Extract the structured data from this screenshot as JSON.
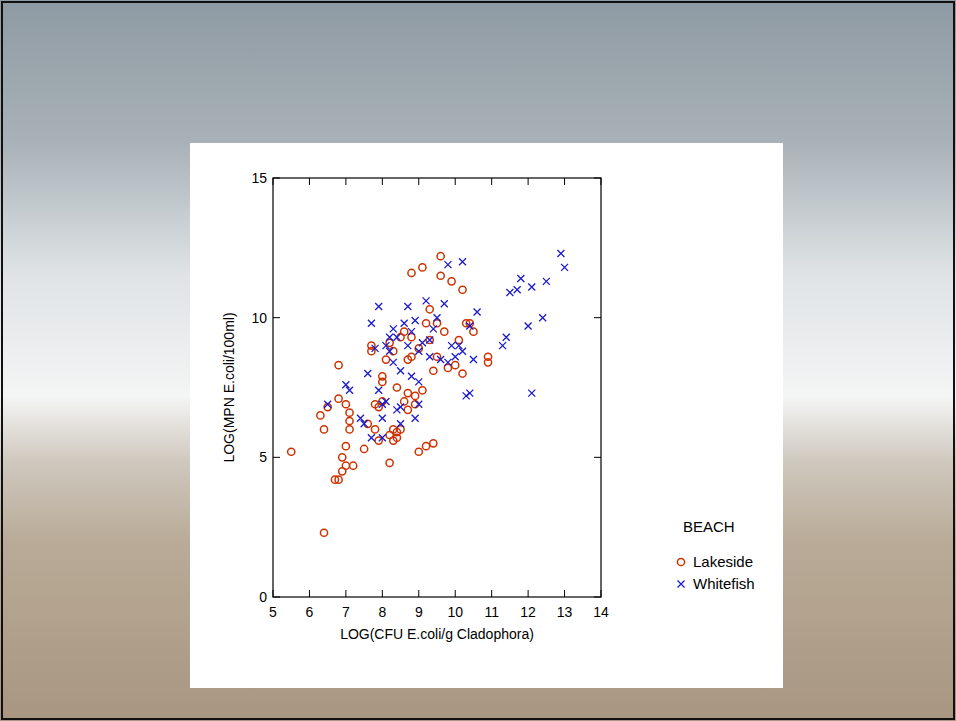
{
  "chart_data": {
    "type": "scatter",
    "x_label": "LOG(CFU E.coli/g Cladophora)",
    "y_label": "LOG(MPN E.coli/100ml)",
    "legend_title": "BEACH",
    "legend": "right",
    "xlim": [
      5,
      14
    ],
    "ylim": [
      0,
      15
    ],
    "xticks": [
      5,
      6,
      7,
      8,
      9,
      10,
      11,
      12,
      13,
      14
    ],
    "yticks": [
      0,
      5,
      10,
      15
    ],
    "series": [
      {
        "name": "Lakeside",
        "color": "#cc3300",
        "marker": "circle",
        "x": [
          5.5,
          6.4,
          6.3,
          6.4,
          6.5,
          6.7,
          6.8,
          6.8,
          6.8,
          6.9,
          6.9,
          7.0,
          7.0,
          7.0,
          7.1,
          7.1,
          7.2,
          7.1,
          7.5,
          7.6,
          7.7,
          7.7,
          7.8,
          7.8,
          7.9,
          8.0,
          8.0,
          8.1,
          8.2,
          8.2,
          8.3,
          8.3,
          8.4,
          8.4,
          8.5,
          8.4,
          8.3,
          8.5,
          8.6,
          8.7,
          8.7,
          8.7,
          8.8,
          8.8,
          8.8,
          8.9,
          8.9,
          9.0,
          9.1,
          9.1,
          9.2,
          9.2,
          9.3,
          9.3,
          9.4,
          9.4,
          9.5,
          9.5,
          9.6,
          9.6,
          9.7,
          9.8,
          9.9,
          10.0,
          10.1,
          10.2,
          10.2,
          10.3,
          10.4,
          10.5,
          10.9,
          10.9,
          8.0,
          7.9,
          8.2,
          8.6,
          9.0
        ],
        "values": [
          5.2,
          2.3,
          6.5,
          6.0,
          6.8,
          4.2,
          4.2,
          8.3,
          7.1,
          4.5,
          5.0,
          4.7,
          5.4,
          6.9,
          6.3,
          6.6,
          4.7,
          6.0,
          5.3,
          6.2,
          9.0,
          8.8,
          6.9,
          6.0,
          6.8,
          7.7,
          7.9,
          8.5,
          4.8,
          5.8,
          6.0,
          5.6,
          5.7,
          5.9,
          6.0,
          7.5,
          8.8,
          9.3,
          7.0,
          6.7,
          7.3,
          8.5,
          11.6,
          8.6,
          9.3,
          6.9,
          7.2,
          5.2,
          7.4,
          11.8,
          9.8,
          5.4,
          9.2,
          10.3,
          5.5,
          8.1,
          8.6,
          9.8,
          11.5,
          12.2,
          9.5,
          8.2,
          11.3,
          8.3,
          9.2,
          11.0,
          8.0,
          9.8,
          9.8,
          9.5,
          8.4,
          8.6,
          7.0,
          5.6,
          9.1,
          9.5,
          8.9
        ]
      },
      {
        "name": "Whitefish",
        "color": "#1a1acc",
        "marker": "x",
        "x": [
          6.5,
          7.0,
          7.1,
          7.4,
          7.5,
          7.6,
          7.7,
          7.8,
          7.9,
          7.9,
          8.0,
          8.0,
          8.0,
          8.1,
          8.1,
          8.2,
          8.3,
          8.3,
          8.4,
          8.5,
          8.5,
          8.5,
          8.6,
          8.7,
          8.7,
          8.8,
          8.8,
          8.9,
          8.9,
          9.0,
          9.0,
          9.0,
          9.1,
          9.2,
          9.3,
          9.3,
          9.4,
          9.5,
          9.6,
          9.7,
          9.8,
          9.8,
          9.9,
          10.0,
          10.1,
          10.2,
          10.2,
          10.3,
          10.4,
          10.4,
          10.5,
          10.6,
          11.3,
          11.4,
          11.5,
          11.7,
          11.8,
          12.0,
          12.1,
          12.1,
          12.4,
          12.5,
          12.9,
          13.0,
          8.4,
          7.7,
          8.2
        ],
        "values": [
          6.9,
          7.6,
          7.4,
          6.4,
          6.2,
          8.0,
          9.8,
          8.9,
          10.4,
          7.4,
          6.9,
          5.7,
          6.4,
          9.0,
          7.0,
          9.3,
          8.4,
          9.6,
          9.3,
          8.1,
          6.8,
          6.2,
          9.8,
          10.4,
          9.0,
          7.9,
          9.5,
          6.4,
          9.9,
          6.9,
          7.7,
          8.8,
          9.1,
          10.6,
          8.6,
          9.2,
          9.6,
          10.0,
          8.5,
          10.5,
          8.4,
          11.9,
          9.0,
          8.6,
          9.0,
          8.8,
          12.0,
          7.2,
          7.3,
          9.7,
          8.5,
          10.2,
          9.0,
          9.3,
          10.9,
          11.0,
          11.4,
          9.7,
          11.1,
          7.3,
          10.0,
          11.3,
          12.3,
          11.8,
          6.7,
          5.7,
          8.8
        ]
      }
    ]
  }
}
